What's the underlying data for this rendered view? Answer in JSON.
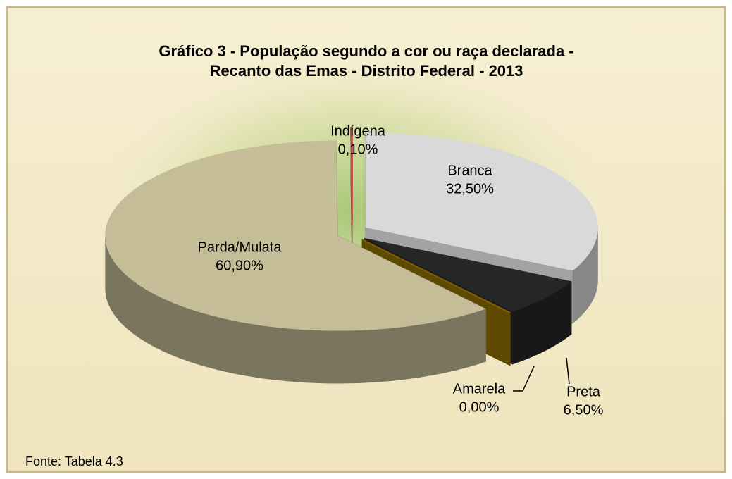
{
  "chart_data": {
    "type": "pie3d",
    "title": [
      "Gráfico 3 - População segundo a cor ou raça declarada -",
      "Recanto das Emas - Distrito Federal - 2013"
    ],
    "categories": [
      "Branca",
      "Preta",
      "Amarela",
      "Parda/Mulata",
      "Indígena"
    ],
    "values": [
      32.5,
      6.5,
      0.0,
      60.9,
      0.1
    ],
    "value_labels": [
      "32,50%",
      "6,50%",
      "0,00%",
      "60,90%",
      "0,10%"
    ],
    "colors": [
      "#d9d9d9",
      "#262626",
      "#7f6000",
      "#c4bd97",
      "#c0504d"
    ],
    "source": "Fonte: Tabela 4.3"
  }
}
